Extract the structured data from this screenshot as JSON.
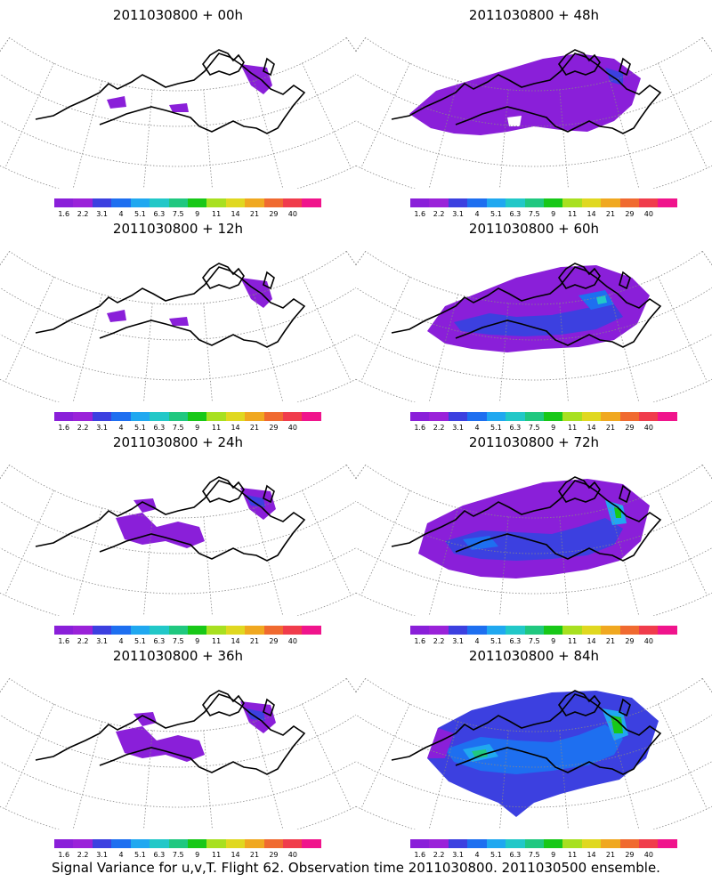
{
  "panels": [
    {
      "title": "2011030800 + 00h",
      "level": 0
    },
    {
      "title": "2011030800 + 48h",
      "level": 2
    },
    {
      "title": "2011030800 + 12h",
      "level": 0
    },
    {
      "title": "2011030800 + 60h",
      "level": 3
    },
    {
      "title": "2011030800 + 24h",
      "level": 1
    },
    {
      "title": "2011030800 + 72h",
      "level": 4
    },
    {
      "title": "2011030800 + 36h",
      "level": 1
    },
    {
      "title": "2011030800 + 84h",
      "level": 5
    }
  ],
  "colorbar": {
    "labels": [
      "1.6",
      "2.2",
      "3.1",
      "4",
      "5.1",
      "6.3",
      "7.5",
      "9",
      "11",
      "14",
      "21",
      "29",
      "40"
    ],
    "colors": [
      "#8a1fd9",
      "#9a22d9",
      "#3c40e0",
      "#1e6ff0",
      "#20a8f0",
      "#22c8c8",
      "#20c880",
      "#18c818",
      "#a8e020",
      "#e0d820",
      "#f0a820",
      "#f06a30",
      "#f03c4c",
      "#f0148c"
    ]
  },
  "caption": "Signal Variance for u,v,T. Flight 62. Observation time 2011030800. 2011030500 ensemble."
}
